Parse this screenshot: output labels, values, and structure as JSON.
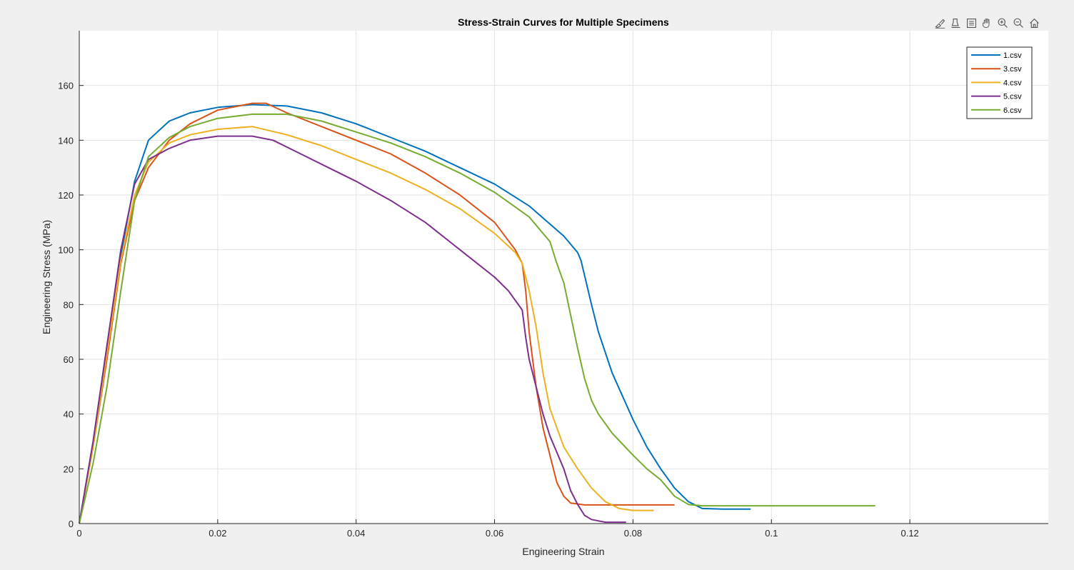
{
  "toolbar": {
    "buttons": [
      {
        "name": "brush-icon"
      },
      {
        "name": "data-tips-icon"
      },
      {
        "name": "legend-toggle-icon"
      },
      {
        "name": "pan-icon"
      },
      {
        "name": "zoom-in-icon"
      },
      {
        "name": "zoom-out-icon"
      },
      {
        "name": "home-icon"
      }
    ]
  },
  "chart_data": {
    "type": "line",
    "title": "Stress-Strain Curves for Multiple Specimens",
    "xlabel": "Engineering Strain",
    "ylabel": "Engineering Stress (MPa)",
    "xlim": [
      0,
      0.14
    ],
    "ylim": [
      0,
      180
    ],
    "xticks": [
      0,
      0.02,
      0.04,
      0.06,
      0.08,
      0.1,
      0.12
    ],
    "xtick_labels": [
      "0",
      "0.02",
      "0.04",
      "0.06",
      "0.08",
      "0.1",
      "0.12"
    ],
    "yticks": [
      0,
      20,
      40,
      60,
      80,
      100,
      120,
      140,
      160
    ],
    "ytick_labels": [
      "0",
      "20",
      "40",
      "60",
      "80",
      "100",
      "120",
      "140",
      "160"
    ],
    "grid": true,
    "legend_position": "top-right",
    "series": [
      {
        "name": "1.csv",
        "color": "#0072BD",
        "points": [
          [
            0,
            0
          ],
          [
            0.002,
            30
          ],
          [
            0.004,
            65
          ],
          [
            0.006,
            98
          ],
          [
            0.008,
            125
          ],
          [
            0.01,
            140
          ],
          [
            0.013,
            147
          ],
          [
            0.016,
            150
          ],
          [
            0.02,
            152
          ],
          [
            0.025,
            153
          ],
          [
            0.03,
            152.5
          ],
          [
            0.035,
            150
          ],
          [
            0.04,
            146
          ],
          [
            0.045,
            141
          ],
          [
            0.05,
            136
          ],
          [
            0.055,
            130
          ],
          [
            0.06,
            124
          ],
          [
            0.065,
            116
          ],
          [
            0.07,
            105
          ],
          [
            0.072,
            99
          ],
          [
            0.0725,
            96
          ],
          [
            0.074,
            80
          ],
          [
            0.075,
            70
          ],
          [
            0.077,
            55
          ],
          [
            0.08,
            38
          ],
          [
            0.082,
            28
          ],
          [
            0.084,
            20
          ],
          [
            0.086,
            13
          ],
          [
            0.088,
            8
          ],
          [
            0.09,
            5.5
          ],
          [
            0.093,
            5.3
          ],
          [
            0.097,
            5.3
          ]
        ]
      },
      {
        "name": "3.csv",
        "color": "#D95319",
        "points": [
          [
            0,
            0
          ],
          [
            0.002,
            28
          ],
          [
            0.004,
            60
          ],
          [
            0.006,
            95
          ],
          [
            0.008,
            118
          ],
          [
            0.01,
            130
          ],
          [
            0.013,
            140
          ],
          [
            0.016,
            146
          ],
          [
            0.02,
            151
          ],
          [
            0.025,
            153.5
          ],
          [
            0.027,
            153.5
          ],
          [
            0.03,
            150
          ],
          [
            0.035,
            145
          ],
          [
            0.04,
            140
          ],
          [
            0.045,
            135
          ],
          [
            0.05,
            128
          ],
          [
            0.055,
            120
          ],
          [
            0.06,
            110
          ],
          [
            0.063,
            100
          ],
          [
            0.064,
            95
          ],
          [
            0.0645,
            85
          ],
          [
            0.065,
            70
          ],
          [
            0.066,
            50
          ],
          [
            0.067,
            35
          ],
          [
            0.068,
            25
          ],
          [
            0.069,
            15
          ],
          [
            0.07,
            10
          ],
          [
            0.071,
            7.5
          ],
          [
            0.073,
            6.8
          ],
          [
            0.08,
            6.8
          ],
          [
            0.086,
            6.8
          ]
        ]
      },
      {
        "name": "4.csv",
        "color": "#EDB120",
        "points": [
          [
            0,
            0
          ],
          [
            0.002,
            28
          ],
          [
            0.004,
            62
          ],
          [
            0.006,
            96
          ],
          [
            0.008,
            120
          ],
          [
            0.01,
            132
          ],
          [
            0.013,
            139
          ],
          [
            0.016,
            142
          ],
          [
            0.02,
            144
          ],
          [
            0.025,
            145
          ],
          [
            0.03,
            142
          ],
          [
            0.035,
            138
          ],
          [
            0.04,
            133
          ],
          [
            0.045,
            128
          ],
          [
            0.05,
            122
          ],
          [
            0.055,
            115
          ],
          [
            0.06,
            106
          ],
          [
            0.063,
            99
          ],
          [
            0.064,
            95
          ],
          [
            0.065,
            85
          ],
          [
            0.066,
            72
          ],
          [
            0.067,
            55
          ],
          [
            0.068,
            42
          ],
          [
            0.07,
            28
          ],
          [
            0.072,
            20
          ],
          [
            0.074,
            13
          ],
          [
            0.076,
            8
          ],
          [
            0.078,
            5.5
          ],
          [
            0.08,
            4.8
          ],
          [
            0.083,
            4.8
          ]
        ]
      },
      {
        "name": "5.csv",
        "color": "#7E2F8E",
        "points": [
          [
            0,
            0
          ],
          [
            0.002,
            30
          ],
          [
            0.004,
            65
          ],
          [
            0.006,
            100
          ],
          [
            0.008,
            124
          ],
          [
            0.01,
            133
          ],
          [
            0.013,
            137
          ],
          [
            0.016,
            140
          ],
          [
            0.02,
            141.5
          ],
          [
            0.025,
            141.5
          ],
          [
            0.028,
            140
          ],
          [
            0.032,
            135
          ],
          [
            0.036,
            130
          ],
          [
            0.04,
            125
          ],
          [
            0.045,
            118
          ],
          [
            0.05,
            110
          ],
          [
            0.055,
            100
          ],
          [
            0.06,
            90
          ],
          [
            0.062,
            85
          ],
          [
            0.064,
            78
          ],
          [
            0.0645,
            68
          ],
          [
            0.065,
            60
          ],
          [
            0.066,
            50
          ],
          [
            0.067,
            40
          ],
          [
            0.068,
            32
          ],
          [
            0.07,
            20
          ],
          [
            0.071,
            12
          ],
          [
            0.072,
            7
          ],
          [
            0.073,
            3
          ],
          [
            0.074,
            1.5
          ],
          [
            0.076,
            0.5
          ],
          [
            0.079,
            0.5
          ]
        ]
      },
      {
        "name": "6.csv",
        "color": "#77AC30",
        "points": [
          [
            0,
            0
          ],
          [
            0.002,
            22
          ],
          [
            0.004,
            50
          ],
          [
            0.006,
            85
          ],
          [
            0.008,
            118
          ],
          [
            0.01,
            134
          ],
          [
            0.013,
            141
          ],
          [
            0.016,
            145
          ],
          [
            0.02,
            148
          ],
          [
            0.025,
            149.5
          ],
          [
            0.03,
            149.5
          ],
          [
            0.035,
            147
          ],
          [
            0.04,
            143
          ],
          [
            0.045,
            139
          ],
          [
            0.05,
            134
          ],
          [
            0.055,
            128
          ],
          [
            0.06,
            121
          ],
          [
            0.065,
            112
          ],
          [
            0.068,
            103
          ],
          [
            0.069,
            95
          ],
          [
            0.07,
            88
          ],
          [
            0.071,
            76
          ],
          [
            0.072,
            64
          ],
          [
            0.073,
            53
          ],
          [
            0.074,
            45
          ],
          [
            0.075,
            40
          ],
          [
            0.077,
            33
          ],
          [
            0.08,
            25
          ],
          [
            0.082,
            20
          ],
          [
            0.084,
            16
          ],
          [
            0.085,
            13
          ],
          [
            0.086,
            10
          ],
          [
            0.088,
            7
          ],
          [
            0.09,
            6.5
          ],
          [
            0.1,
            6.5
          ],
          [
            0.11,
            6.5
          ],
          [
            0.115,
            6.5
          ]
        ]
      }
    ]
  }
}
